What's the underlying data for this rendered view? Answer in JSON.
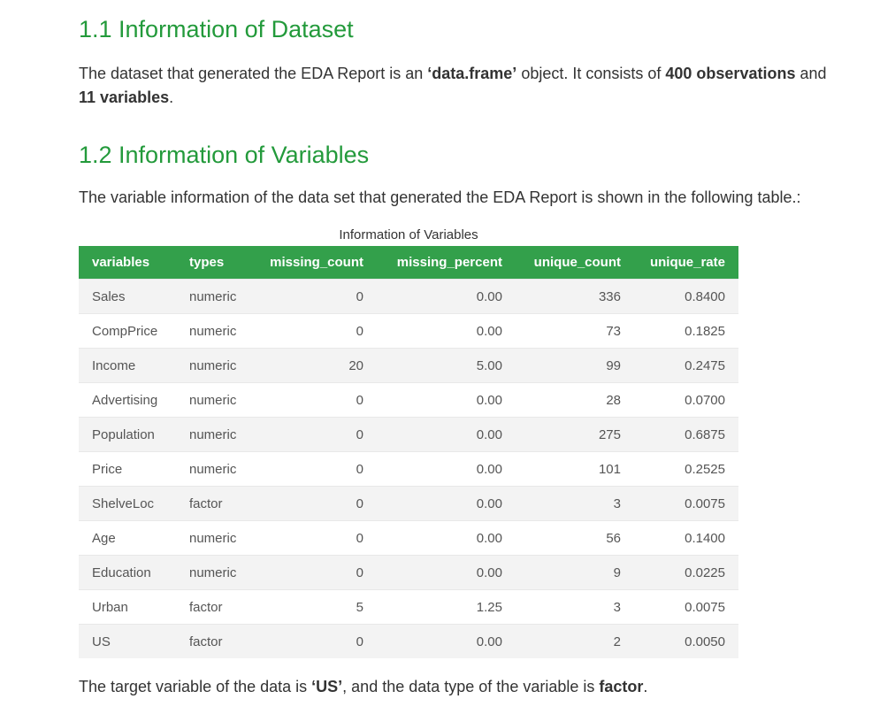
{
  "section1": {
    "heading": "1.1 Information of Dataset",
    "para": {
      "t1": "The dataset that generated the EDA Report is an ",
      "b1": "‘data.frame’",
      "t2": " object. It consists of ",
      "b2": "400 observations",
      "t3": " and ",
      "b3": "11 variables",
      "t4": "."
    }
  },
  "section2": {
    "heading": "1.2 Information of Variables",
    "para": "The variable information of the data set that generated the EDA Report is shown in the following table.:"
  },
  "table": {
    "caption": "Information of Variables",
    "headers": [
      "variables",
      "types",
      "missing_count",
      "missing_percent",
      "unique_count",
      "unique_rate"
    ],
    "rows": [
      [
        "Sales",
        "numeric",
        "0",
        "0.00",
        "336",
        "0.8400"
      ],
      [
        "CompPrice",
        "numeric",
        "0",
        "0.00",
        "73",
        "0.1825"
      ],
      [
        "Income",
        "numeric",
        "20",
        "5.00",
        "99",
        "0.2475"
      ],
      [
        "Advertising",
        "numeric",
        "0",
        "0.00",
        "28",
        "0.0700"
      ],
      [
        "Population",
        "numeric",
        "0",
        "0.00",
        "275",
        "0.6875"
      ],
      [
        "Price",
        "numeric",
        "0",
        "0.00",
        "101",
        "0.2525"
      ],
      [
        "ShelveLoc",
        "factor",
        "0",
        "0.00",
        "3",
        "0.0075"
      ],
      [
        "Age",
        "numeric",
        "0",
        "0.00",
        "56",
        "0.1400"
      ],
      [
        "Education",
        "numeric",
        "0",
        "0.00",
        "9",
        "0.0225"
      ],
      [
        "Urban",
        "factor",
        "5",
        "1.25",
        "3",
        "0.0075"
      ],
      [
        "US",
        "factor",
        "0",
        "0.00",
        "2",
        "0.0050"
      ]
    ]
  },
  "target": {
    "t1": "The target variable of the data is ",
    "b1": "‘US’",
    "t2": ", and the data type of the variable is ",
    "b2": "factor",
    "t3": "."
  },
  "colors": {
    "heading": "#239a3b",
    "table_header_bg": "#33a04b",
    "row_stripe": "#f3f3f3"
  }
}
